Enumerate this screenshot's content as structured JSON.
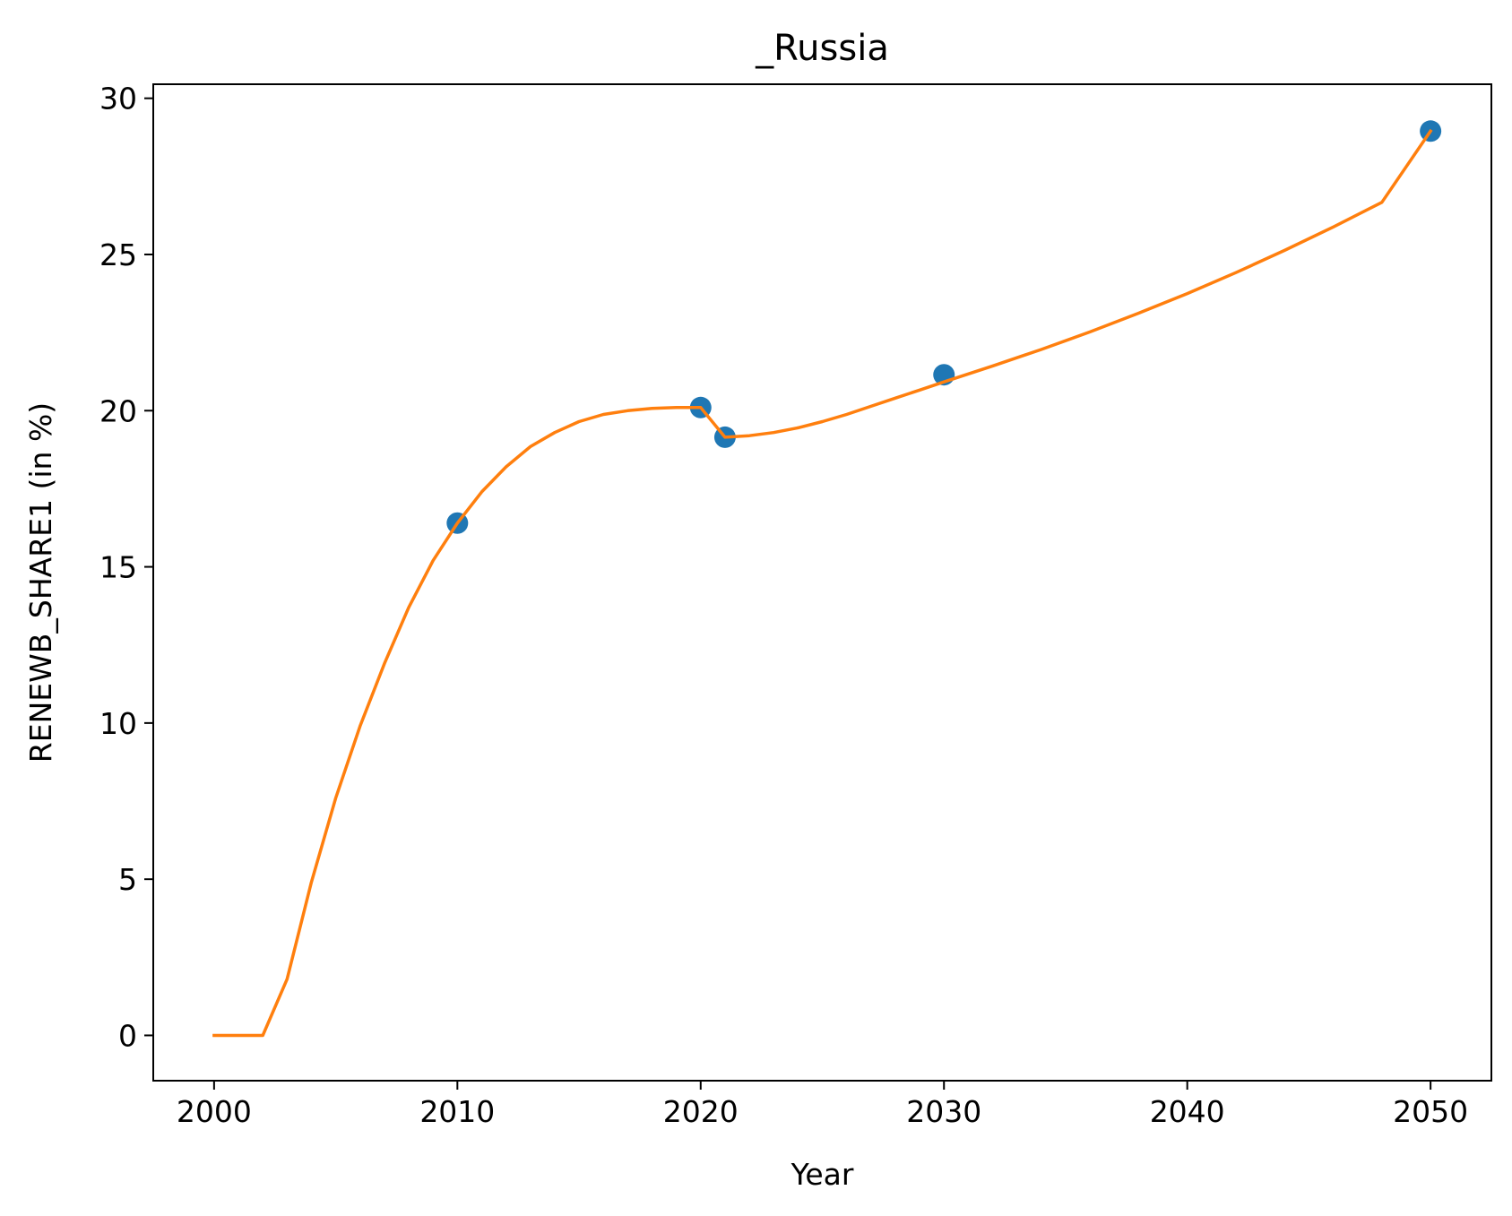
{
  "chart_data": {
    "type": "line",
    "title": "_Russia",
    "xlabel": "Year",
    "ylabel": "RENEWB_SHARE1 (in %)",
    "xlim": [
      1997.5,
      2052.5
    ],
    "ylim": [
      -1.45,
      30.45
    ],
    "x_ticks": [
      2000,
      2010,
      2020,
      2030,
      2040,
      2050
    ],
    "y_ticks": [
      0,
      5,
      10,
      15,
      20,
      25,
      30
    ],
    "grid": false,
    "legend": "none",
    "series": [
      {
        "type": "scatter",
        "color": "#1f77b4",
        "x": [
          2010,
          2020,
          2021,
          2030,
          2050
        ],
        "y": [
          16.4,
          20.1,
          19.15,
          21.15,
          28.95
        ]
      },
      {
        "type": "line",
        "color": "#ff7f0e",
        "x": [
          2000,
          2001,
          2002,
          2003,
          2004,
          2005,
          2006,
          2007,
          2008,
          2009,
          2010,
          2011,
          2012,
          2013,
          2014,
          2015,
          2016,
          2017,
          2018,
          2019,
          2020,
          2021,
          2022,
          2023,
          2024,
          2025,
          2026,
          2027,
          2028,
          2029,
          2030,
          2032,
          2034,
          2036,
          2038,
          2040,
          2042,
          2044,
          2046,
          2048,
          2050
        ],
        "y": [
          0,
          0,
          0,
          1.8,
          4.9,
          7.6,
          9.9,
          11.9,
          13.7,
          15.2,
          16.4,
          17.4,
          18.2,
          18.85,
          19.3,
          19.65,
          19.88,
          20.0,
          20.07,
          20.1,
          20.1,
          19.15,
          19.2,
          19.3,
          19.45,
          19.65,
          19.88,
          20.14,
          20.4,
          20.66,
          20.92,
          21.43,
          21.96,
          22.52,
          23.12,
          23.75,
          24.42,
          25.13,
          25.88,
          26.67,
          28.95
        ]
      }
    ]
  }
}
